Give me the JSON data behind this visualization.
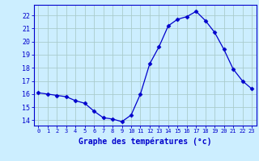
{
  "hours": [
    0,
    1,
    2,
    3,
    4,
    5,
    6,
    7,
    8,
    9,
    10,
    11,
    12,
    13,
    14,
    15,
    16,
    17,
    18,
    19,
    20,
    21,
    22,
    23
  ],
  "temps": [
    16.1,
    16.0,
    15.9,
    15.8,
    15.5,
    15.3,
    14.7,
    14.2,
    14.1,
    13.9,
    14.4,
    16.0,
    18.3,
    19.6,
    21.2,
    21.7,
    21.9,
    22.3,
    21.6,
    20.7,
    19.4,
    17.9,
    17.0,
    16.4
  ],
  "line_color": "#0000cc",
  "marker": "D",
  "marker_size": 2.5,
  "bg_color": "#cceeff",
  "grid_color": "#aacccc",
  "axis_color": "#0000cc",
  "xlabel": "Graphe des températures (°c)",
  "xlabel_fontsize": 7,
  "ylabel_ticks": [
    14,
    15,
    16,
    17,
    18,
    19,
    20,
    21,
    22
  ],
  "xlim": [
    -0.5,
    23.5
  ],
  "ylim": [
    13.6,
    22.8
  ]
}
